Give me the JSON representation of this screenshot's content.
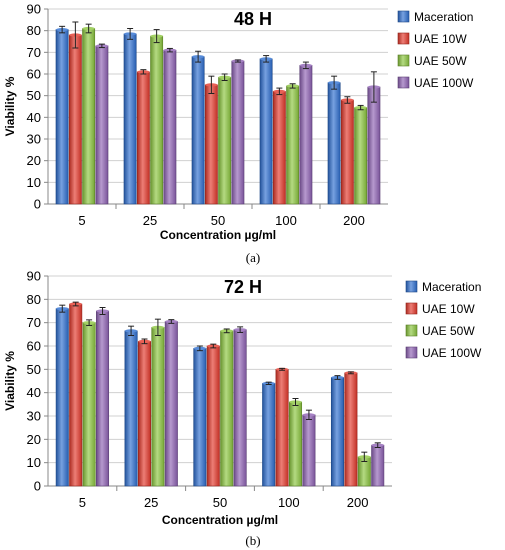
{
  "chart_data": [
    {
      "type": "bar",
      "title": "48 H",
      "caption": "(a)",
      "xlabel": "Concentration µg/ml",
      "ylabel": "Viability %",
      "categories": [
        "5",
        "25",
        "50",
        "100",
        "200"
      ],
      "ylim": [
        0,
        90
      ],
      "yticks": [
        0,
        10,
        20,
        30,
        40,
        50,
        60,
        70,
        80,
        90
      ],
      "legend_position": "right",
      "series": [
        {
          "name": "Maceration",
          "color": "#2e6fd0",
          "values": [
            80.5,
            78.5,
            68,
            67,
            56
          ],
          "errors": [
            1.5,
            2.5,
            2.5,
            1.5,
            3
          ]
        },
        {
          "name": "UAE 10W",
          "color": "#e4392c",
          "values": [
            78,
            61,
            55,
            52,
            48
          ],
          "errors": [
            6,
            1,
            4,
            1.5,
            1.5
          ]
        },
        {
          "name": "UAE 50W",
          "color": "#8cc63f",
          "values": [
            81,
            77.5,
            58.5,
            54.5,
            44.5
          ],
          "errors": [
            2,
            3,
            1.5,
            1,
            1
          ]
        },
        {
          "name": "UAE 100W",
          "color": "#8e62b4",
          "values": [
            73,
            71,
            66,
            64,
            54
          ],
          "errors": [
            0.8,
            0.8,
            0.5,
            1.5,
            7
          ]
        }
      ]
    },
    {
      "type": "bar",
      "title": "72 H",
      "caption": "(b)",
      "xlabel": "Concentration µg/ml",
      "ylabel": "Viability %",
      "categories": [
        "5",
        "25",
        "50",
        "100",
        "200"
      ],
      "ylim": [
        0,
        90
      ],
      "yticks": [
        0,
        10,
        20,
        30,
        40,
        50,
        60,
        70,
        80,
        90
      ],
      "legend_position": "right",
      "series": [
        {
          "name": "Maceration",
          "color": "#2e6fd0",
          "values": [
            76,
            66.5,
            59,
            44,
            46.5
          ],
          "errors": [
            1.5,
            2,
            1,
            0.5,
            0.8
          ]
        },
        {
          "name": "UAE 10W",
          "color": "#e4392c",
          "values": [
            78,
            62,
            60,
            50,
            48.5
          ],
          "errors": [
            0.8,
            1,
            0.8,
            0.4,
            0.4
          ]
        },
        {
          "name": "UAE 50W",
          "color": "#8cc63f",
          "values": [
            70,
            68,
            66.5,
            36,
            12.5
          ],
          "errors": [
            1.2,
            3.5,
            0.8,
            1.5,
            2
          ]
        },
        {
          "name": "UAE 100W",
          "color": "#8e62b4",
          "values": [
            75,
            70.5,
            67,
            30.5,
            17.5
          ],
          "errors": [
            1.5,
            0.8,
            1.2,
            2,
            1
          ]
        }
      ]
    }
  ]
}
